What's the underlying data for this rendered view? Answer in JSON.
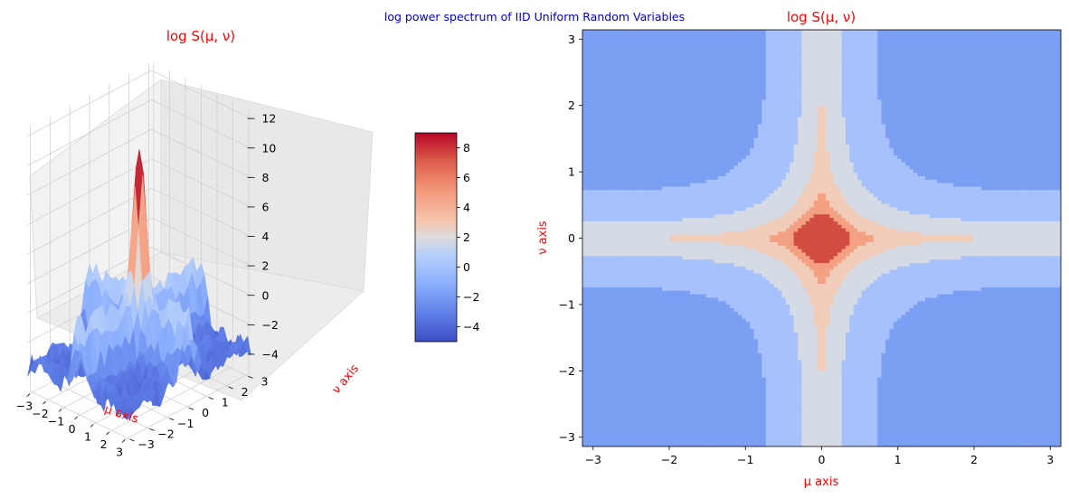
{
  "figure": {
    "suptitle": "log power spectrum of IID Uniform Random Variables",
    "suptitle_color": "#0000cc",
    "label_color": "#ff0000"
  },
  "chart_data": [
    {
      "type": "surface3d",
      "title": "log S(μ, ν)",
      "xlabel": "μ axis",
      "ylabel": "ν axis",
      "x_ticks": [
        "−3",
        "−2",
        "−1",
        "0",
        "1",
        "2",
        "3"
      ],
      "y_ticks": [
        "−3",
        "−2",
        "−1",
        "0",
        "1",
        "2",
        "3"
      ],
      "z_ticks": [
        "−4",
        "−2",
        "0",
        "2",
        "4",
        "6",
        "8",
        "10",
        "12"
      ],
      "xlim": [
        -3.14,
        3.14
      ],
      "ylim": [
        -3.14,
        3.14
      ],
      "zlim": [
        -5,
        12
      ],
      "peak_value": 10.5,
      "baseline_value": -3.5,
      "colormap": "coolwarm",
      "grid": true
    },
    {
      "type": "colorbar",
      "ticks": [
        "−4",
        "−2",
        "0",
        "2",
        "4",
        "6",
        "8"
      ],
      "range": [
        -5,
        9
      ]
    },
    {
      "type": "contourf",
      "title": "log S(μ, ν)",
      "xlabel": "μ axis",
      "ylabel": "ν axis",
      "x_ticks": [
        "−3",
        "−2",
        "−1",
        "0",
        "1",
        "2",
        "3"
      ],
      "y_ticks": [
        "−3",
        "−2",
        "−1",
        "0",
        "1",
        "2",
        "3"
      ],
      "xlim": [
        -3.14,
        3.14
      ],
      "ylim": [
        -3.14,
        3.14
      ],
      "levels": [
        -6,
        -4,
        -2,
        0,
        2,
        4,
        6,
        8
      ],
      "level_colors": [
        "#4b64d6",
        "#7b9ff2",
        "#a6c1fb",
        "#d5dbe5",
        "#f1cdb9",
        "#f4a083",
        "#d24d41"
      ],
      "peak_value": 7.5
    }
  ]
}
